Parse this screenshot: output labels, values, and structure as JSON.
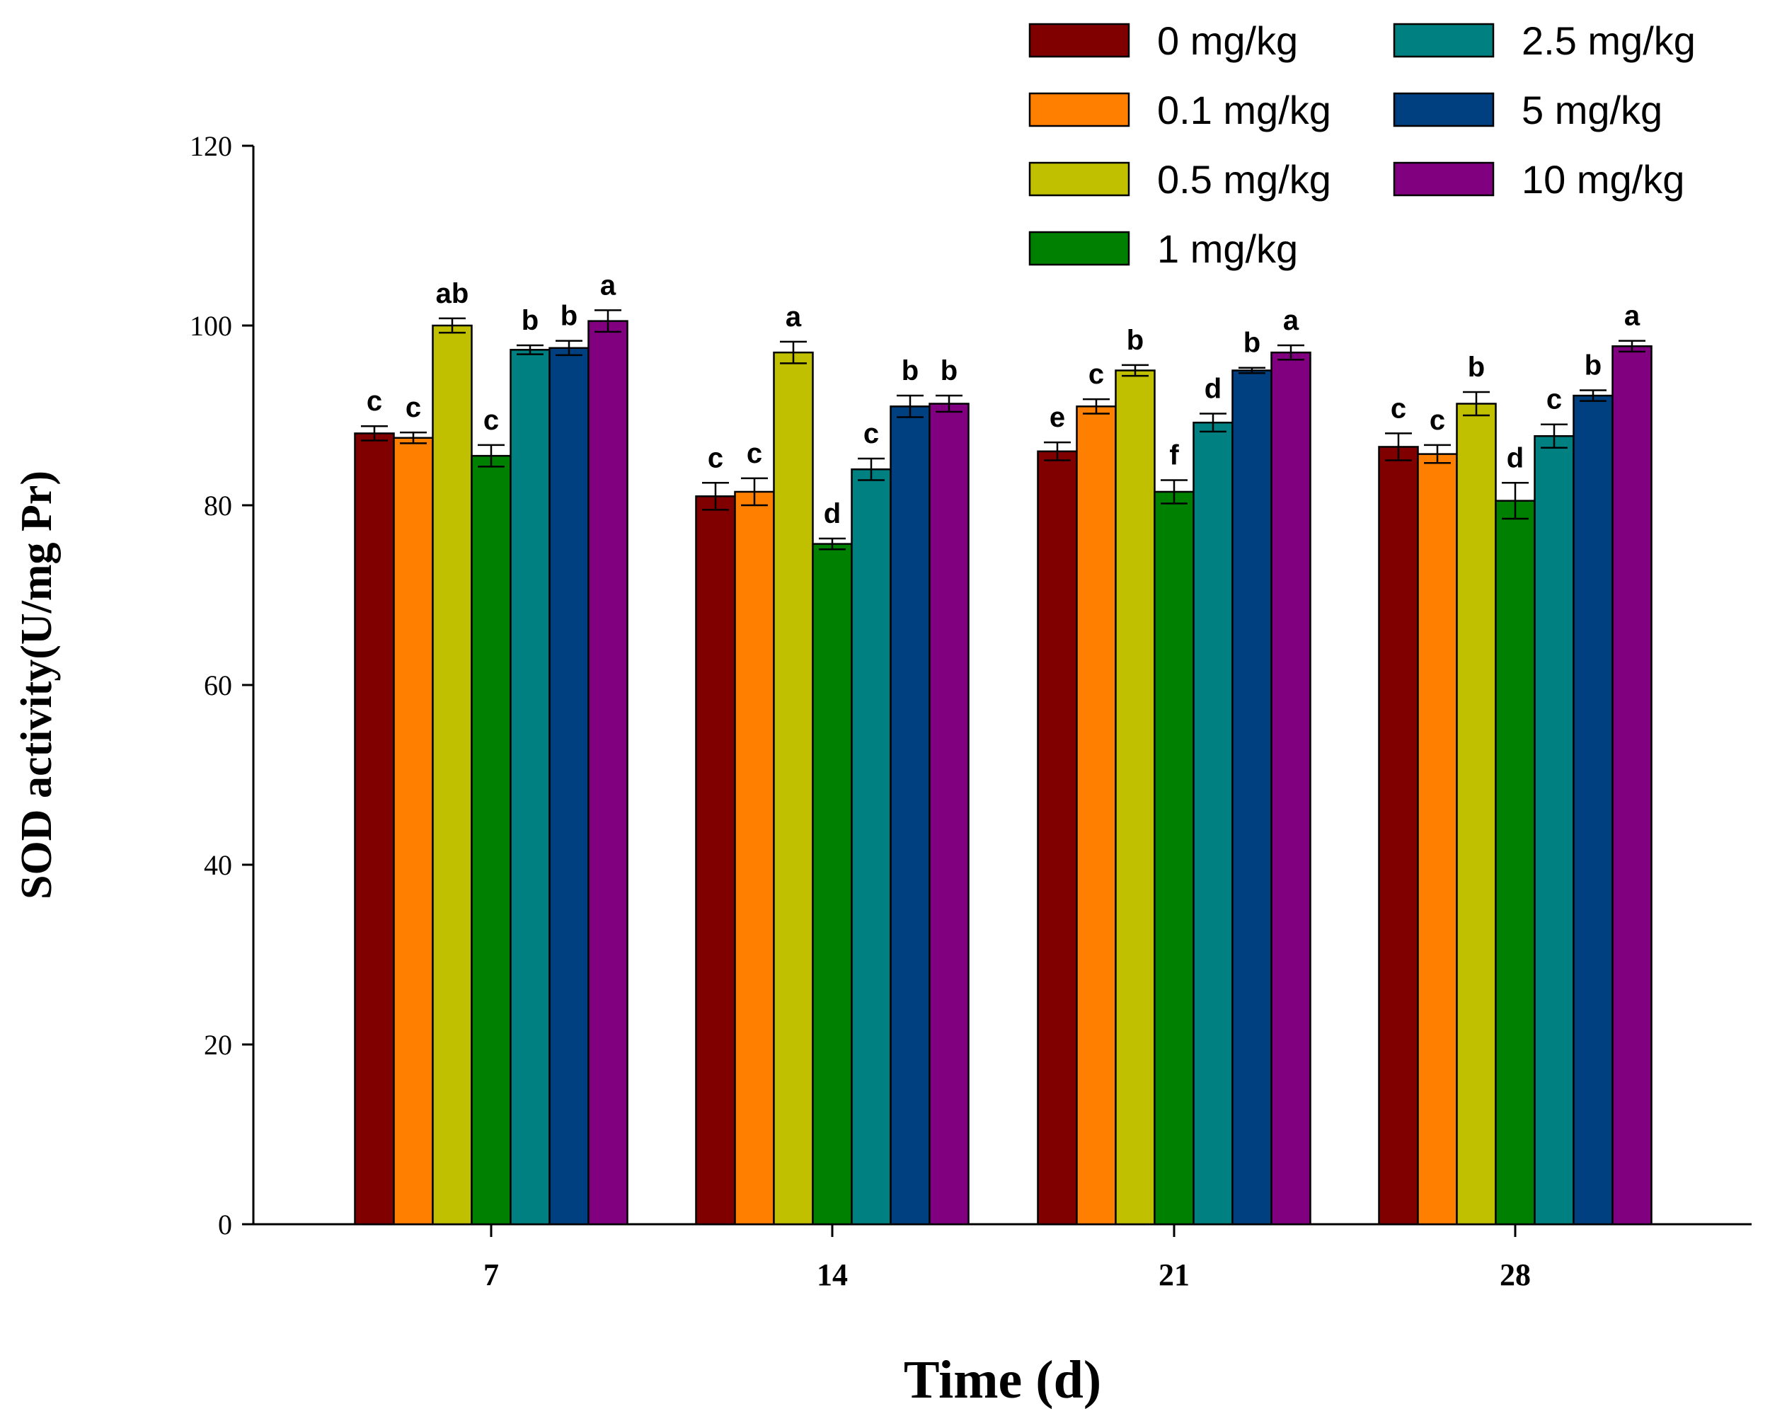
{
  "chart_data": {
    "type": "bar",
    "title": "",
    "xlabel": "Time (d)",
    "ylabel": "SOD activity(U/mg Pr)",
    "ylim": [
      0,
      120
    ],
    "yticks": [
      0,
      20,
      40,
      60,
      80,
      100,
      120
    ],
    "categories": [
      "7",
      "14",
      "21",
      "28"
    ],
    "legend_position": "top-right",
    "series": [
      {
        "name": "0 mg/kg",
        "color": "#800000",
        "values": [
          88.0,
          81.0,
          86.0,
          86.5
        ],
        "errors": [
          0.8,
          1.5,
          1.0,
          1.5
        ],
        "labels": [
          "c",
          "c",
          "e",
          "c"
        ]
      },
      {
        "name": "0.1 mg/kg",
        "color": "#ff8000",
        "values": [
          87.5,
          81.5,
          91.0,
          85.7
        ],
        "errors": [
          0.6,
          1.5,
          0.8,
          1.0
        ],
        "labels": [
          "c",
          "c",
          "c",
          "c"
        ]
      },
      {
        "name": "0.5 mg/kg",
        "color": "#c0c000",
        "values": [
          100.0,
          97.0,
          95.0,
          91.3
        ],
        "errors": [
          0.8,
          1.2,
          0.6,
          1.3
        ],
        "labels": [
          "ab",
          "a",
          "b",
          "b"
        ]
      },
      {
        "name": "1 mg/kg",
        "color": "#008000",
        "values": [
          85.5,
          75.7,
          81.5,
          80.5
        ],
        "errors": [
          1.2,
          0.6,
          1.3,
          2.0
        ],
        "labels": [
          "c",
          "d",
          "f",
          "d"
        ]
      },
      {
        "name": "2.5 mg/kg",
        "color": "#008080",
        "values": [
          97.3,
          84.0,
          89.2,
          87.7
        ],
        "errors": [
          0.5,
          1.2,
          1.0,
          1.3
        ],
        "labels": [
          "b",
          "c",
          "d",
          "c"
        ]
      },
      {
        "name": "5 mg/kg",
        "color": "#004080",
        "values": [
          97.5,
          91.0,
          95.0,
          92.2
        ],
        "errors": [
          0.8,
          1.2,
          0.3,
          0.6
        ],
        "labels": [
          "b",
          "b",
          "b",
          "b"
        ]
      },
      {
        "name": "10 mg/kg",
        "color": "#800080",
        "values": [
          100.5,
          91.3,
          97.0,
          97.7
        ],
        "errors": [
          1.2,
          0.9,
          0.8,
          0.6
        ],
        "labels": [
          "a",
          "b",
          "a",
          "a"
        ]
      }
    ]
  }
}
